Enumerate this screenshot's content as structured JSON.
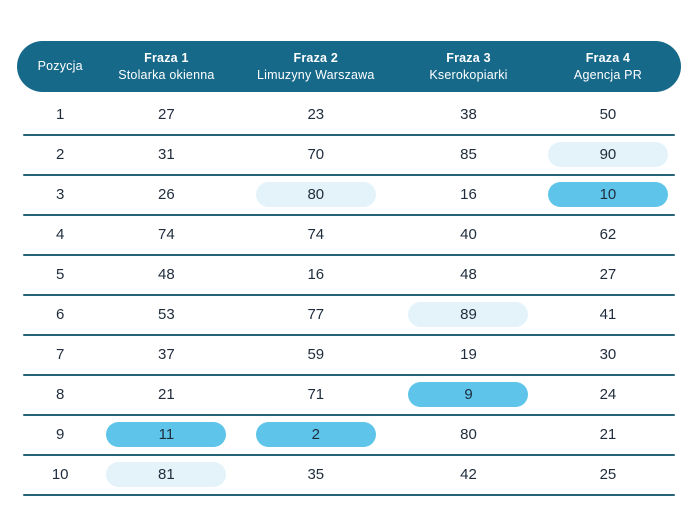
{
  "colors": {
    "header_bg": "#17698a",
    "header_text": "#ffffff",
    "separator": "#276478",
    "value_text": "#1e2c3c",
    "highlight_strong": "#5ec4e9",
    "highlight_light": "#e3f3f9"
  },
  "table": {
    "position_header": "Pozycja",
    "phrase_columns": [
      {
        "label": "Fraza 1",
        "keyword": "Stolarka okienna"
      },
      {
        "label": "Fraza 2",
        "keyword": "Limuzyny Warszawa"
      },
      {
        "label": "Fraza 3",
        "keyword": "Kserokopiarki"
      },
      {
        "label": "Fraza 4",
        "keyword": "Agencja PR"
      }
    ],
    "rows": [
      {
        "position": "1",
        "cells": [
          {
            "value": "27",
            "highlight": ""
          },
          {
            "value": "23",
            "highlight": ""
          },
          {
            "value": "38",
            "highlight": ""
          },
          {
            "value": "50",
            "highlight": ""
          }
        ]
      },
      {
        "position": "2",
        "cells": [
          {
            "value": "31",
            "highlight": ""
          },
          {
            "value": "70",
            "highlight": ""
          },
          {
            "value": "85",
            "highlight": ""
          },
          {
            "value": "90",
            "highlight": "light"
          }
        ]
      },
      {
        "position": "3",
        "cells": [
          {
            "value": "26",
            "highlight": ""
          },
          {
            "value": "80",
            "highlight": "light"
          },
          {
            "value": "16",
            "highlight": ""
          },
          {
            "value": "10",
            "highlight": "strong"
          }
        ]
      },
      {
        "position": "4",
        "cells": [
          {
            "value": "74",
            "highlight": ""
          },
          {
            "value": "74",
            "highlight": ""
          },
          {
            "value": "40",
            "highlight": ""
          },
          {
            "value": "62",
            "highlight": ""
          }
        ]
      },
      {
        "position": "5",
        "cells": [
          {
            "value": "48",
            "highlight": ""
          },
          {
            "value": "16",
            "highlight": ""
          },
          {
            "value": "48",
            "highlight": ""
          },
          {
            "value": "27",
            "highlight": ""
          }
        ]
      },
      {
        "position": "6",
        "cells": [
          {
            "value": "53",
            "highlight": ""
          },
          {
            "value": "77",
            "highlight": ""
          },
          {
            "value": "89",
            "highlight": "light"
          },
          {
            "value": "41",
            "highlight": ""
          }
        ]
      },
      {
        "position": "7",
        "cells": [
          {
            "value": "37",
            "highlight": ""
          },
          {
            "value": "59",
            "highlight": ""
          },
          {
            "value": "19",
            "highlight": ""
          },
          {
            "value": "30",
            "highlight": ""
          }
        ]
      },
      {
        "position": "8",
        "cells": [
          {
            "value": "21",
            "highlight": ""
          },
          {
            "value": "71",
            "highlight": ""
          },
          {
            "value": "9",
            "highlight": "strong"
          },
          {
            "value": "24",
            "highlight": ""
          }
        ]
      },
      {
        "position": "9",
        "cells": [
          {
            "value": "11",
            "highlight": "strong"
          },
          {
            "value": "2",
            "highlight": "strong"
          },
          {
            "value": "80",
            "highlight": ""
          },
          {
            "value": "21",
            "highlight": ""
          }
        ]
      },
      {
        "position": "10",
        "cells": [
          {
            "value": "81",
            "highlight": "light"
          },
          {
            "value": "35",
            "highlight": ""
          },
          {
            "value": "42",
            "highlight": ""
          },
          {
            "value": "25",
            "highlight": ""
          }
        ]
      }
    ]
  },
  "chart_data": {
    "type": "table",
    "columns": [
      "Pozycja",
      "Fraza 1 Stolarka okienna",
      "Fraza 2 Limuzyny Warszawa",
      "Fraza 3 Kserokopiarki",
      "Fraza 4 Agencja PR"
    ],
    "rows": [
      [
        1,
        27,
        23,
        38,
        50
      ],
      [
        2,
        31,
        70,
        85,
        90
      ],
      [
        3,
        26,
        80,
        16,
        10
      ],
      [
        4,
        74,
        74,
        40,
        62
      ],
      [
        5,
        48,
        16,
        48,
        27
      ],
      [
        6,
        53,
        77,
        89,
        41
      ],
      [
        7,
        37,
        59,
        19,
        30
      ],
      [
        8,
        21,
        71,
        9,
        24
      ],
      [
        9,
        11,
        2,
        80,
        21
      ],
      [
        10,
        81,
        35,
        42,
        25
      ]
    ],
    "highlighted_cells": [
      {
        "row": 2,
        "column": "Fraza 4",
        "value": 90,
        "style": "light"
      },
      {
        "row": 3,
        "column": "Fraza 2",
        "value": 80,
        "style": "light"
      },
      {
        "row": 3,
        "column": "Fraza 4",
        "value": 10,
        "style": "strong"
      },
      {
        "row": 6,
        "column": "Fraza 3",
        "value": 89,
        "style": "light"
      },
      {
        "row": 8,
        "column": "Fraza 3",
        "value": 9,
        "style": "strong"
      },
      {
        "row": 9,
        "column": "Fraza 1",
        "value": 11,
        "style": "strong"
      },
      {
        "row": 9,
        "column": "Fraza 2",
        "value": 2,
        "style": "strong"
      },
      {
        "row": 10,
        "column": "Fraza 1",
        "value": 81,
        "style": "light"
      }
    ]
  }
}
